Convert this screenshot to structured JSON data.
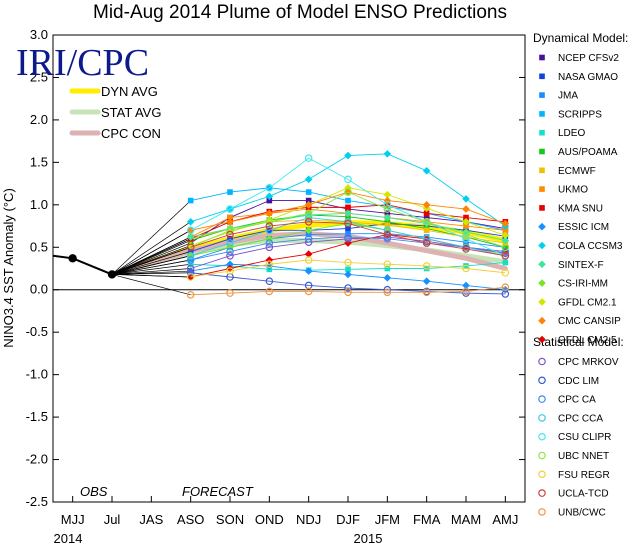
{
  "chart_data": {
    "type": "line",
    "title": "Mid-Aug 2014 Plume of Model ENSO Predictions",
    "ylabel": "NINO3.4 SST Anomaly (°C)",
    "xlabel": "",
    "ylim": [
      -2.5,
      3.0
    ],
    "yticks": [
      "3.0",
      "2.5",
      "2.0",
      "1.5",
      "1.0",
      "0.5",
      "0.0",
      "-0.5",
      "-1.0",
      "-1.5",
      "-2.0",
      "-2.5"
    ],
    "categories": [
      "MJJ",
      "Jul",
      "JAS",
      "ASO",
      "SON",
      "OND",
      "NDJ",
      "DJF",
      "JFM",
      "FMA",
      "MAM",
      "AMJ"
    ],
    "year_labels": [
      "2014",
      "2015"
    ],
    "logo": "IRI/CPC",
    "obs_label": "OBS",
    "forecast_label": "FORECAST",
    "observed": {
      "name": "Observed",
      "x": [
        0,
        1
      ],
      "values": [
        0.37,
        0.18
      ],
      "color": "#000000"
    },
    "averages": [
      {
        "name": "DYN AVG",
        "color": "#ffee00",
        "values": [
          0.48,
          0.6,
          0.7,
          0.76,
          0.79,
          0.78,
          0.74,
          0.68,
          0.58
        ]
      },
      {
        "name": "STAT AVG",
        "color": "#c6e4b8",
        "values": [
          0.44,
          0.53,
          0.58,
          0.58,
          0.56,
          0.52,
          0.47,
          0.4,
          0.33
        ]
      },
      {
        "name": "CPC CON",
        "color": "#deb2b2",
        "values": [
          0.46,
          0.56,
          0.64,
          0.66,
          0.63,
          0.55,
          0.46,
          0.37,
          0.25
        ]
      }
    ],
    "dynamical_header": "Dynamical Model:",
    "statistical_header": "Statistical Model:",
    "dynamical_models": [
      {
        "name": "NCEP CFSv2",
        "color": "#4b0fa0",
        "marker": "square",
        "values": [
          0.55,
          0.85,
          1.05,
          1.05,
          0.95,
          0.9,
          0.85,
          0.8,
          0.72
        ]
      },
      {
        "name": "NASA GMAO",
        "color": "#1440e0",
        "marker": "square",
        "values": [
          0.45,
          0.6,
          0.7,
          0.7,
          0.72,
          0.78,
          0.75,
          0.7,
          0.63
        ]
      },
      {
        "name": "JMA",
        "color": "#1a8cff",
        "marker": "square",
        "values": [
          0.35,
          0.5,
          0.6,
          0.65,
          0.66,
          0.66,
          0.62,
          0.56,
          0.5
        ]
      },
      {
        "name": "SCRIPPS",
        "color": "#00b4ff",
        "marker": "square",
        "values": [
          1.05,
          1.15,
          1.2,
          1.15,
          1.05,
          0.98,
          0.9,
          0.8,
          0.7
        ]
      },
      {
        "name": "LDEO",
        "color": "#14e0c8",
        "marker": "square",
        "values": [
          0.3,
          0.28,
          0.24,
          0.23,
          0.24,
          0.25,
          0.25,
          0.28,
          0.32
        ]
      },
      {
        "name": "AUS/POAMA",
        "color": "#14c814",
        "marker": "square",
        "values": [
          0.58,
          0.72,
          0.82,
          0.88,
          0.86,
          0.8,
          0.72,
          0.62,
          0.5
        ]
      },
      {
        "name": "ECMWF",
        "color": "#f0c000",
        "marker": "square",
        "values": [
          0.6,
          0.72,
          0.8,
          0.82,
          0.8,
          0.76,
          0.7,
          0.62,
          0.55
        ]
      },
      {
        "name": "UKMO",
        "color": "#ff8c00",
        "marker": "square",
        "values": [
          0.62,
          0.85,
          0.9,
          0.95,
          0.9,
          0.85,
          0.8,
          0.75,
          0.7
        ]
      },
      {
        "name": "KMA SNU",
        "color": "#e80000",
        "marker": "square",
        "values": [
          0.6,
          0.8,
          0.92,
          0.97,
          0.97,
          1.0,
          0.9,
          0.85,
          0.8
        ]
      },
      {
        "name": "ESSIC ICM",
        "color": "#1890ff",
        "marker": "diamond",
        "values": [
          0.22,
          0.3,
          0.28,
          0.22,
          0.18,
          0.14,
          0.1,
          0.05,
          0.0
        ]
      },
      {
        "name": "COLA CCSM3",
        "color": "#00d0f0",
        "marker": "diamond",
        "values": [
          0.8,
          0.95,
          1.1,
          1.3,
          1.58,
          1.6,
          1.4,
          1.07,
          0.75
        ]
      },
      {
        "name": "SINTEX-F",
        "color": "#3ce6a0",
        "marker": "diamond",
        "values": [
          0.62,
          0.72,
          0.8,
          0.88,
          0.9,
          0.85,
          0.78,
          0.68,
          0.58
        ]
      },
      {
        "name": "CS-IRI-MM",
        "color": "#78e628",
        "marker": "diamond",
        "values": [
          0.4,
          0.5,
          0.6,
          0.7,
          0.78,
          0.7,
          0.6,
          0.5,
          0.42
        ]
      },
      {
        "name": "GFDL CM2.1",
        "color": "#d2e600",
        "marker": "diamond",
        "values": [
          0.52,
          0.68,
          0.82,
          1.0,
          1.2,
          1.12,
          0.96,
          0.8,
          0.64
        ]
      },
      {
        "name": "CMC CANSIP",
        "color": "#ff8200",
        "marker": "diamond",
        "values": [
          0.7,
          0.8,
          0.9,
          1.0,
          1.15,
          1.05,
          1.0,
          0.95,
          0.78
        ]
      },
      {
        "name": "GFDL CM2.5",
        "color": "#e80000",
        "marker": "diamond",
        "values": [
          0.15,
          0.25,
          0.35,
          0.42,
          0.55,
          0.65,
          0.6,
          0.5,
          0.45
        ]
      }
    ],
    "statistical_models": [
      {
        "name": "CPC MRKOV",
        "color": "#8050c8",
        "marker": "circle",
        "values": [
          0.25,
          0.4,
          0.5,
          0.56,
          0.6,
          0.62,
          0.57,
          0.5,
          0.43
        ]
      },
      {
        "name": "CDC LIM",
        "color": "#3c5ad2",
        "marker": "circle",
        "values": [
          0.2,
          0.15,
          0.1,
          0.05,
          0.02,
          0.0,
          -0.02,
          -0.04,
          -0.05
        ]
      },
      {
        "name": "CPC CA",
        "color": "#3c8cf0",
        "marker": "circle",
        "values": [
          0.35,
          0.45,
          0.55,
          0.6,
          0.62,
          0.6,
          0.55,
          0.5,
          0.45
        ]
      },
      {
        "name": "CPC CCA",
        "color": "#3cc8e6",
        "marker": "circle",
        "values": [
          0.4,
          0.55,
          0.7,
          0.85,
          0.8,
          0.7,
          0.6,
          0.5,
          0.4
        ]
      },
      {
        "name": "CSU CLIPR",
        "color": "#46e6f0",
        "marker": "circle",
        "values": [
          0.7,
          0.95,
          1.2,
          1.55,
          1.3,
          1.0,
          0.8,
          0.6,
          0.4
        ]
      },
      {
        "name": "UBC NNET",
        "color": "#8ce63c",
        "marker": "circle",
        "values": [
          0.5,
          0.7,
          0.8,
          0.9,
          1.15,
          0.95,
          0.8,
          0.65,
          0.5
        ]
      },
      {
        "name": "FSU REGR",
        "color": "#f0d23c",
        "marker": "circle",
        "values": [
          0.15,
          0.22,
          0.3,
          0.35,
          0.32,
          0.3,
          0.28,
          0.25,
          0.2
        ]
      },
      {
        "name": "UCLA-TCD",
        "color": "#d23c3c",
        "marker": "circle",
        "values": [
          0.5,
          0.65,
          0.75,
          0.8,
          0.78,
          0.65,
          0.55,
          0.48,
          0.4
        ]
      },
      {
        "name": "UNB/CWC",
        "color": "#f09646",
        "marker": "circle",
        "values": [
          -0.06,
          -0.04,
          -0.02,
          -0.02,
          -0.03,
          -0.03,
          -0.03,
          -0.02,
          0.03
        ]
      }
    ]
  }
}
